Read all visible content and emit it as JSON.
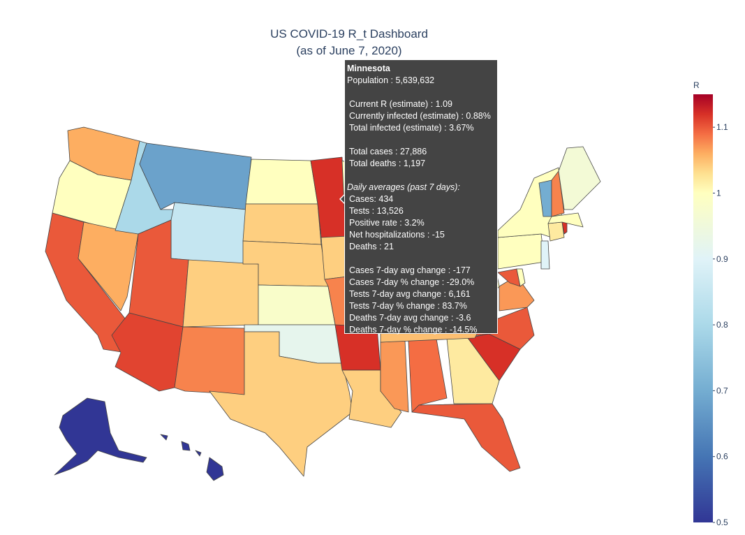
{
  "chart_data": {
    "type": "choropleth",
    "title": "US COVID-19 R_t Dashboard",
    "subtitle": "(as of June 7, 2020)",
    "values": [
      1.06,
      1.0,
      1.1,
      1.06,
      0.8,
      0.68,
      0.85,
      1.1,
      1.11,
      1.04,
      1.08,
      1.0,
      1.04,
      1.04,
      0.98,
      0.92,
      1.04,
      1.12,
      1.04,
      1.08,
      1.12,
      1.04,
      1.07,
      1.09,
      1.02,
      1.1,
      1.12,
      1.1,
      1.05,
      1.07,
      1.0,
      1.0,
      1.05,
      1.05,
      1.0,
      1.05,
      1.0,
      1.1,
      1.0,
      1.0,
      0.9,
      1.0,
      1.02,
      1.12,
      1.0,
      0.7,
      1.08,
      0.96,
      0.5,
      0.5
    ],
    "colorbar": {
      "title": "R",
      "clim": [
        0.5,
        1.15
      ],
      "ticks": [
        0.5,
        0.6,
        0.7,
        0.8,
        0.9,
        1,
        1.1
      ],
      "colorscale": [
        [
          0.5,
          "#313695"
        ],
        [
          0.6,
          "#4575b4"
        ],
        [
          0.7,
          "#74add1"
        ],
        [
          0.8,
          "#abd9e9"
        ],
        [
          0.9,
          "#e0f3f8"
        ],
        [
          1.0,
          "#ffffbf"
        ],
        [
          1.03,
          "#fee090"
        ],
        [
          1.06,
          "#fdae61"
        ],
        [
          1.09,
          "#f46d43"
        ],
        [
          1.12,
          "#d73027"
        ],
        [
          1.15,
          "#a50026"
        ]
      ]
    },
    "tooltip": {
      "state": "Minnesota",
      "population": "Population : 5,639,632",
      "estimates": [
        "Current R (estimate) : 1.09",
        "Currently infected (estimate) : 0.88%",
        "Total infected (estimate) : 3.67%"
      ],
      "totals": [
        "Total cases : 27,886",
        "Total deaths : 1,197"
      ],
      "daily_heading": "Daily averages (past 7 days):",
      "daily": [
        "Cases: 434",
        "Tests : 13,526",
        "Positive rate : 3.2%",
        "Net hospitalizations : -15",
        "Deaths : 21"
      ],
      "changes": [
        "Cases 7-day avg change : -177",
        "Cases 7-day % change : -29.0%",
        "Tests 7-day avg change : 6,161",
        "Tests 7-day % change : 83.7%",
        "Deaths 7-day avg change : -3.6",
        "Deaths 7-day % change : -14.5%"
      ]
    }
  }
}
